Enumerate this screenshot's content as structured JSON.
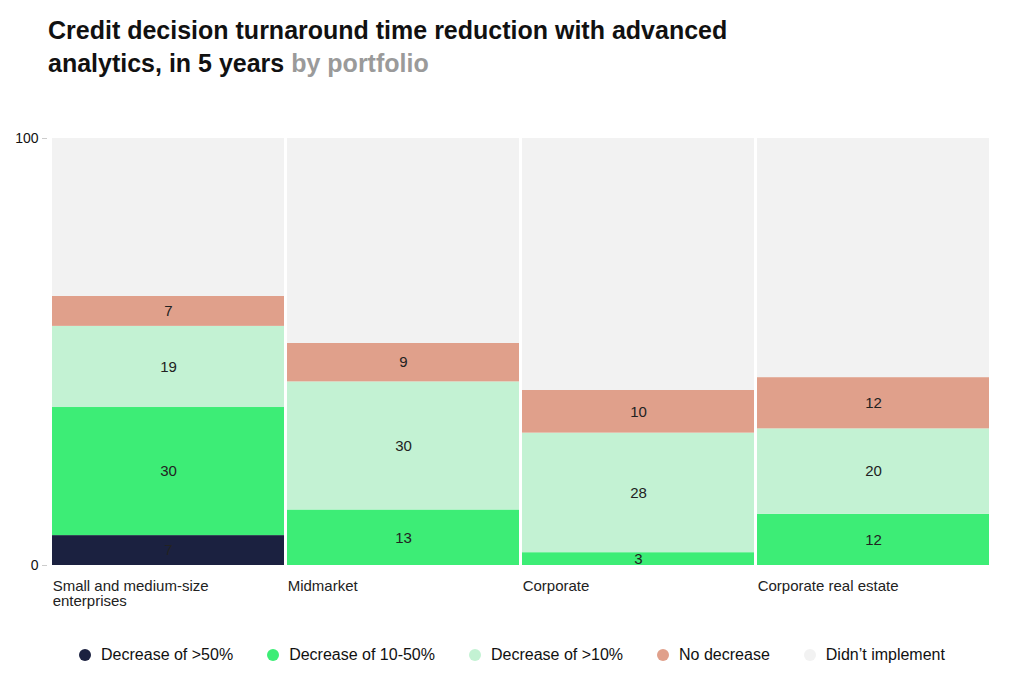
{
  "chart_data": {
    "type": "bar",
    "title": "Credit decision turnaround time reduction with advanced analytics, in 5 years",
    "subtitle": "by portfolio",
    "categories": [
      "Small and medium-size enterprises",
      "Midmarket",
      "Corporate",
      "Corporate real estate"
    ],
    "stacked": true,
    "data_labels": true,
    "grid": false,
    "legend": "bottom",
    "ylim": [
      0,
      100
    ],
    "yticks": [
      0,
      100
    ],
    "series": [
      {
        "name": "Decrease of >50%",
        "color": "#1b2140",
        "values": [
          7,
          null,
          null,
          null
        ]
      },
      {
        "name": "Decrease of 10-50%",
        "color": "#3ded76",
        "values": [
          30,
          13,
          3,
          12
        ]
      },
      {
        "name": "Decrease of >10%",
        "color": "#c3f2d3",
        "values": [
          19,
          30,
          28,
          20
        ]
      },
      {
        "name": "No decrease",
        "color": "#e0a08b",
        "values": [
          7,
          9,
          10,
          12
        ]
      },
      {
        "name": "Didn’t implement",
        "color": "#f2f2f2",
        "values": [
          37,
          48,
          59,
          56
        ],
        "data_labels": false
      }
    ]
  }
}
